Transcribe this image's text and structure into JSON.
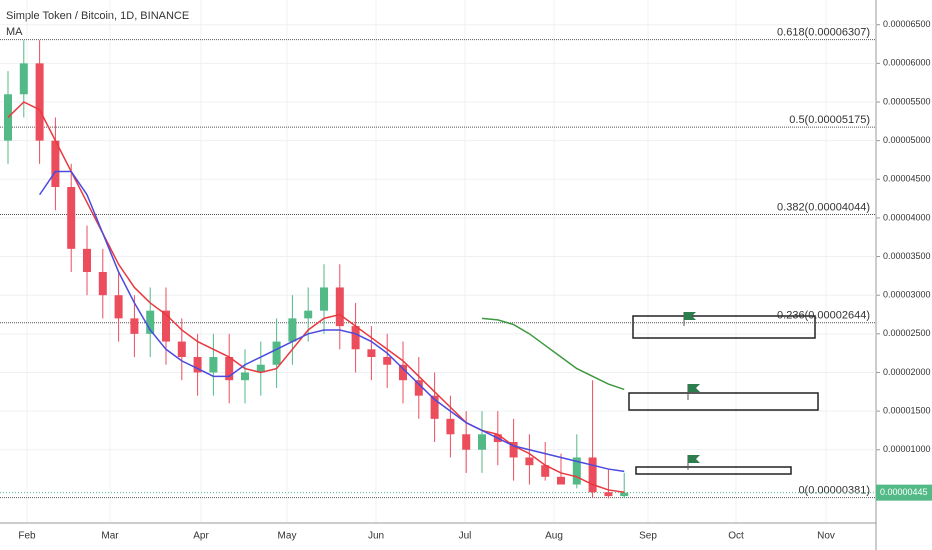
{
  "chart_data": {
    "type": "candlestick",
    "title": "Simple Token / Bitcoin, 1D, BINANCE",
    "indicator": "MA",
    "x_labels": [
      "Feb",
      "Mar",
      "Apr",
      "May",
      "Jun",
      "Jul",
      "Aug",
      "Sep",
      "Oct",
      "Nov"
    ],
    "open": [
      5e-05,
      5.6e-05,
      6e-05,
      5e-05,
      4.4e-05,
      3.6e-05,
      3.3e-05,
      3e-05,
      2.7e-05,
      2.5e-05,
      2.8e-05,
      2.4e-05,
      2.2e-05,
      2e-05,
      2.2e-05,
      1.9e-05,
      2e-05,
      2.1e-05,
      2.4e-05,
      2.7e-05,
      2.8e-05,
      3.1e-05,
      2.6e-05,
      2.3e-05,
      2.2e-05,
      2.1e-05,
      1.9e-05,
      1.7e-05,
      1.4e-05,
      1.2e-05,
      1e-05,
      1.2e-05,
      1.1e-05,
      9e-06,
      8e-06,
      6.5e-06,
      5.5e-06,
      9e-06,
      4.5e-06,
      4e-06
    ],
    "high": [
      5.9e-05,
      6.3e-05,
      6.3e-05,
      5.3e-05,
      4.7e-05,
      3.9e-05,
      3.6e-05,
      3.3e-05,
      3e-05,
      3.1e-05,
      3.1e-05,
      2.7e-05,
      2.5e-05,
      2.5e-05,
      2.5e-05,
      2.3e-05,
      2.4e-05,
      2.7e-05,
      3e-05,
      3.1e-05,
      3.4e-05,
      3.4e-05,
      2.9e-05,
      2.6e-05,
      2.5e-05,
      2.4e-05,
      2.2e-05,
      2e-05,
      1.7e-05,
      1.5e-05,
      1.5e-05,
      1.5e-05,
      1.4e-05,
      1.2e-05,
      1.1e-05,
      9.5e-06,
      1.2e-05,
      1.9e-05,
      7.5e-06,
      7e-06
    ],
    "low": [
      4.7e-05,
      5.3e-05,
      4.7e-05,
      4.1e-05,
      3.3e-05,
      3e-05,
      2.7e-05,
      2.4e-05,
      2.2e-05,
      2.2e-05,
      2.1e-05,
      1.9e-05,
      1.7e-05,
      1.7e-05,
      1.6e-05,
      1.6e-05,
      1.7e-05,
      1.8e-05,
      2.1e-05,
      2.4e-05,
      2.5e-05,
      2.3e-05,
      2e-05,
      1.9e-05,
      1.8e-05,
      1.6e-05,
      1.4e-05,
      1.1e-05,
      9e-06,
      7e-06,
      7e-06,
      8e-06,
      6e-06,
      5.5e-06,
      6e-06,
      5.5e-06,
      5e-06,
      3.8e-06,
      3.7e-06,
      3.8e-06
    ],
    "close": [
      5.6e-05,
      6e-05,
      5e-05,
      4.4e-05,
      3.6e-05,
      3.3e-05,
      3e-05,
      2.7e-05,
      2.5e-05,
      2.8e-05,
      2.4e-05,
      2.2e-05,
      2e-05,
      2.2e-05,
      1.9e-05,
      2e-05,
      2.1e-05,
      2.4e-05,
      2.7e-05,
      2.8e-05,
      3.1e-05,
      2.6e-05,
      2.3e-05,
      2.2e-05,
      2.1e-05,
      1.9e-05,
      1.7e-05,
      1.4e-05,
      1.2e-05,
      1e-05,
      1.2e-05,
      1.1e-05,
      9e-06,
      8e-06,
      6.5e-06,
      5.5e-06,
      9e-06,
      4.5e-06,
      4e-06,
      4.45e-06
    ],
    "up_color": "#53b987",
    "down_color": "#eb4d5c",
    "series": [
      {
        "color": "#e8393f",
        "values": [
          5.3e-05,
          5.5e-05,
          5.4e-05,
          5e-05,
          4.6e-05,
          4.2e-05,
          3.8e-05,
          3.4e-05,
          3.1e-05,
          2.9e-05,
          2.75e-05,
          2.55e-05,
          2.4e-05,
          2.3e-05,
          2.2e-05,
          2.05e-05,
          2e-05,
          2.05e-05,
          2.3e-05,
          2.55e-05,
          2.7e-05,
          2.75e-05,
          2.6e-05,
          2.45e-05,
          2.3e-05,
          2.15e-05,
          1.95e-05,
          1.75e-05,
          1.55e-05,
          1.35e-05,
          1.25e-05,
          1.2e-05,
          1.05e-05,
          9.5e-06,
          8e-06,
          7e-06,
          6.5e-06,
          5.5e-06,
          4.8e-06,
          4.5e-06
        ]
      },
      {
        "color": "#4a4ae0",
        "values": [
          null,
          null,
          4.3e-05,
          4.6e-05,
          4.6e-05,
          4.3e-05,
          3.8e-05,
          3.3e-05,
          2.9e-05,
          2.55e-05,
          2.3e-05,
          2.15e-05,
          2.05e-05,
          1.95e-05,
          1.95e-05,
          2.1e-05,
          2.2e-05,
          2.3e-05,
          2.4e-05,
          2.5e-05,
          2.55e-05,
          2.55e-05,
          2.5e-05,
          2.4e-05,
          2.25e-05,
          2.05e-05,
          1.85e-05,
          1.65e-05,
          1.5e-05,
          1.35e-05,
          1.25e-05,
          1.15e-05,
          1.05e-05,
          1e-05,
          9.5e-06,
          9e-06,
          8.5e-06,
          8e-06,
          7.5e-06,
          7.2e-06
        ]
      },
      {
        "color": "#3f9a3f",
        "values": [
          null,
          null,
          null,
          null,
          null,
          null,
          null,
          null,
          null,
          null,
          null,
          null,
          null,
          null,
          null,
          null,
          null,
          null,
          null,
          null,
          null,
          null,
          null,
          null,
          null,
          null,
          null,
          null,
          null,
          null,
          2.7e-05,
          2.68e-05,
          2.62e-05,
          2.5e-05,
          2.35e-05,
          2.2e-05,
          2.05e-05,
          1.95e-05,
          1.85e-05,
          1.78e-05
        ]
      }
    ],
    "fib_levels": [
      {
        "value": 6.307e-05,
        "label": "0.618(0.00006307)"
      },
      {
        "value": 5.175e-05,
        "label": "0.5(0.00005175)"
      },
      {
        "value": 4.044e-05,
        "label": "0.382(0.00004044)"
      },
      {
        "value": 2.644e-05,
        "label": "0.236(0.00002644)"
      },
      {
        "value": 3.81e-06,
        "label": "0(0.00000381)"
      }
    ],
    "last_price": {
      "value": 4.45e-06,
      "label": "0.00000445"
    },
    "ylim": [
      6.5e-07,
      6.82e-05
    ],
    "yticks": [
      {
        "value": 6.5e-05,
        "label": "0.00006500"
      },
      {
        "value": 6e-05,
        "label": "0.00006000"
      },
      {
        "value": 5.5e-05,
        "label": "0.00005500"
      },
      {
        "value": 5e-05,
        "label": "0.00005000"
      },
      {
        "value": 4.5e-05,
        "label": "0.00004500"
      },
      {
        "value": 4e-05,
        "label": "0.00004000"
      },
      {
        "value": 3.5e-05,
        "label": "0.00003500"
      },
      {
        "value": 3e-05,
        "label": "0.00003000"
      },
      {
        "value": 2.5e-05,
        "label": "0.00002500"
      },
      {
        "value": 2e-05,
        "label": "0.00002000"
      },
      {
        "value": 1.5e-05,
        "label": "0.00001500"
      },
      {
        "value": 1e-05,
        "label": "0.00001000"
      }
    ],
    "grid": true
  }
}
